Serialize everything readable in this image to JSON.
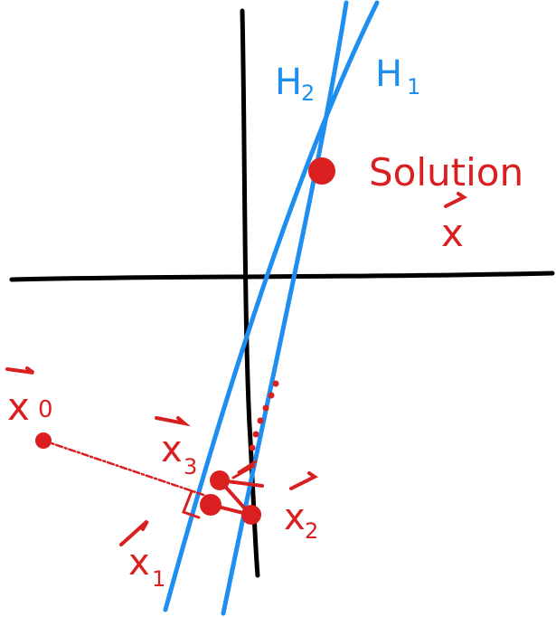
{
  "labels": {
    "h2": {
      "base": "H",
      "sub": "2"
    },
    "h1": {
      "base": "H",
      "sub": "1"
    },
    "solution": "Solution",
    "x_solution": "x",
    "x0": {
      "base": "x",
      "sub": "0"
    },
    "x1": {
      "base": "x",
      "sub": "1"
    },
    "x2": {
      "base": "x",
      "sub": "2"
    },
    "x3": {
      "base": "x",
      "sub": "3"
    }
  },
  "colors": {
    "axes": "#000000",
    "hyperplanes": "#1e8ff0",
    "iterates": "#d91f1f"
  }
}
